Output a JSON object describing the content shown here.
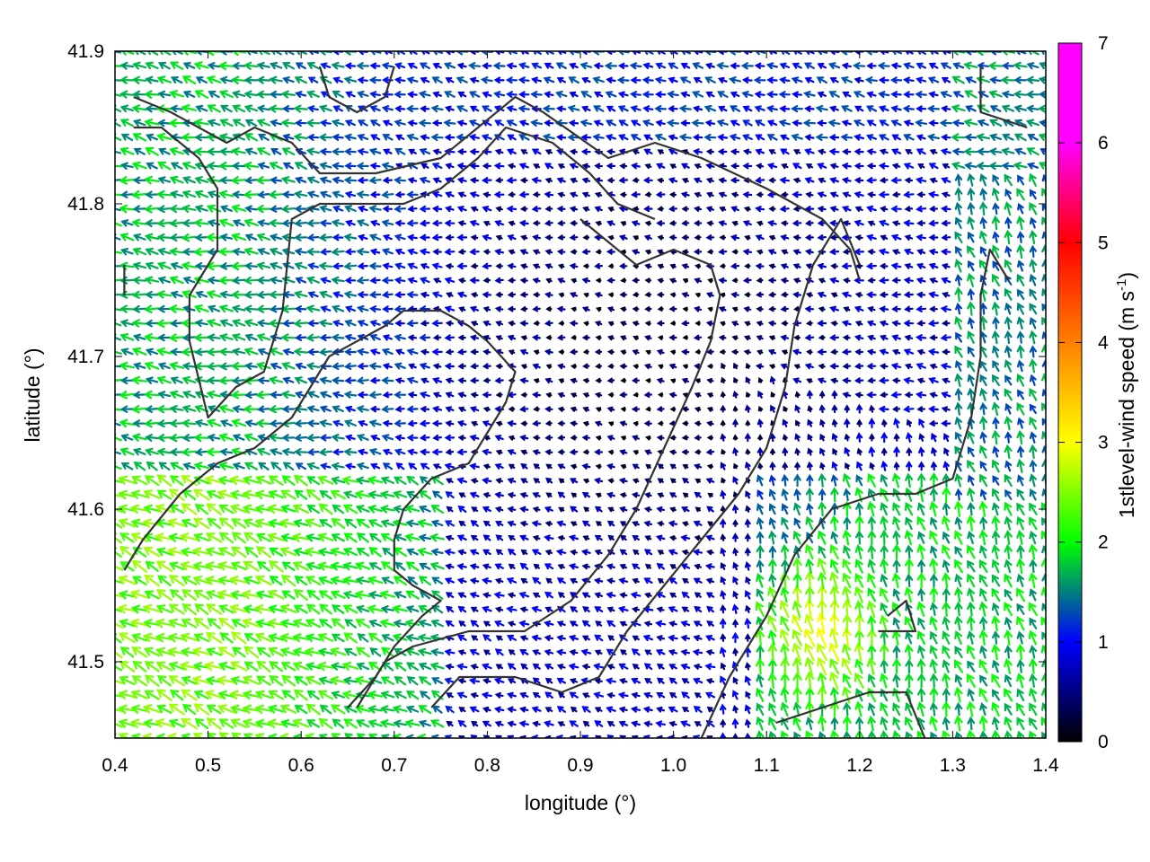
{
  "chart_data": {
    "type": "vector-field",
    "xlabel": "longitude (°)",
    "ylabel": "latitude (°)",
    "xlim": [
      0.4,
      1.4
    ],
    "ylim": [
      41.45,
      41.9
    ],
    "xticks": [
      "0.4",
      "0.5",
      "0.6",
      "0.7",
      "0.8",
      "0.9",
      "1.0",
      "1.1",
      "1.2",
      "1.3",
      "1.4"
    ],
    "yticks": [
      "41.5",
      "41.6",
      "41.7",
      "41.8",
      "41.9"
    ],
    "colorbar": {
      "label_pre": "1stlevel-wind speed (m s",
      "label_exp": "-1",
      "label_post": ")",
      "range": [
        0,
        7
      ],
      "ticks": [
        "0",
        "1",
        "2",
        "3",
        "4",
        "5",
        "6",
        "7"
      ],
      "colors": [
        "#000000",
        "#0000ff",
        "#00ff00",
        "#ffff00",
        "#ff8000",
        "#ff0000",
        "#ff00ff"
      ]
    },
    "grid": {
      "lon_step": 0.01333,
      "lat_step": 0.00937,
      "lon_start": 0.4,
      "lat_start": 41.45
    },
    "contour_lines": [
      [
        [
          0.42,
          41.87
        ],
        [
          0.46,
          41.86
        ],
        [
          0.52,
          41.84
        ],
        [
          0.55,
          41.85
        ],
        [
          0.59,
          41.84
        ],
        [
          0.62,
          41.82
        ],
        [
          0.68,
          41.82
        ],
        [
          0.75,
          41.83
        ],
        [
          0.79,
          41.85
        ],
        [
          0.83,
          41.87
        ],
        [
          0.86,
          41.86
        ],
        [
          0.93,
          41.83
        ],
        [
          0.98,
          41.84
        ],
        [
          1.03,
          41.83
        ],
        [
          1.1,
          41.81
        ],
        [
          1.16,
          41.79
        ],
        [
          1.19,
          41.77
        ],
        [
          1.2,
          41.75
        ]
      ],
      [
        [
          0.42,
          41.85
        ],
        [
          0.45,
          41.85
        ],
        [
          0.49,
          41.83
        ],
        [
          0.51,
          41.81
        ],
        [
          0.51,
          41.77
        ],
        [
          0.48,
          41.74
        ],
        [
          0.48,
          41.71
        ],
        [
          0.5,
          41.66
        ],
        [
          0.53,
          41.68
        ],
        [
          0.56,
          41.69
        ],
        [
          0.58,
          41.73
        ],
        [
          0.59,
          41.79
        ],
        [
          0.62,
          41.8
        ],
        [
          0.66,
          41.8
        ],
        [
          0.71,
          41.8
        ],
        [
          0.75,
          41.81
        ],
        [
          0.79,
          41.83
        ],
        [
          0.82,
          41.85
        ],
        [
          0.87,
          41.84
        ],
        [
          0.91,
          41.82
        ],
        [
          0.94,
          41.8
        ],
        [
          0.98,
          41.79
        ]
      ],
      [
        [
          0.41,
          41.56
        ],
        [
          0.43,
          41.58
        ],
        [
          0.47,
          41.61
        ],
        [
          0.51,
          41.63
        ],
        [
          0.55,
          41.64
        ],
        [
          0.59,
          41.66
        ],
        [
          0.61,
          41.68
        ],
        [
          0.63,
          41.7
        ],
        [
          0.66,
          41.71
        ],
        [
          0.69,
          41.72
        ],
        [
          0.71,
          41.73
        ],
        [
          0.75,
          41.73
        ],
        [
          0.78,
          41.72
        ],
        [
          0.8,
          41.71
        ],
        [
          0.83,
          41.69
        ],
        [
          0.82,
          41.67
        ],
        [
          0.8,
          41.65
        ],
        [
          0.78,
          41.63
        ],
        [
          0.74,
          41.62
        ],
        [
          0.71,
          41.6
        ],
        [
          0.7,
          41.58
        ],
        [
          0.7,
          41.56
        ],
        [
          0.72,
          41.55
        ],
        [
          0.75,
          41.54
        ],
        [
          0.73,
          41.53
        ],
        [
          0.7,
          41.51
        ],
        [
          0.68,
          41.49
        ],
        [
          0.65,
          41.47
        ]
      ],
      [
        [
          0.66,
          41.47
        ],
        [
          0.69,
          41.5
        ],
        [
          0.72,
          41.51
        ],
        [
          0.78,
          41.52
        ],
        [
          0.84,
          41.52
        ],
        [
          0.89,
          41.54
        ],
        [
          0.93,
          41.57
        ],
        [
          0.96,
          41.6
        ],
        [
          0.99,
          41.64
        ],
        [
          1.02,
          41.68
        ],
        [
          1.04,
          41.71
        ],
        [
          1.05,
          41.74
        ],
        [
          1.04,
          41.76
        ],
        [
          1.0,
          41.77
        ],
        [
          0.96,
          41.76
        ],
        [
          0.92,
          41.78
        ],
        [
          0.9,
          41.79
        ]
      ],
      [
        [
          0.74,
          41.47
        ],
        [
          0.77,
          41.49
        ],
        [
          0.83,
          41.49
        ],
        [
          0.88,
          41.48
        ],
        [
          0.92,
          41.49
        ],
        [
          0.95,
          41.52
        ],
        [
          0.99,
          41.55
        ],
        [
          1.03,
          41.58
        ],
        [
          1.07,
          41.61
        ],
        [
          1.1,
          41.64
        ],
        [
          1.12,
          41.68
        ],
        [
          1.13,
          41.72
        ],
        [
          1.15,
          41.76
        ],
        [
          1.18,
          41.79
        ],
        [
          1.2,
          41.76
        ]
      ],
      [
        [
          1.03,
          41.45
        ],
        [
          1.06,
          41.49
        ],
        [
          1.1,
          41.53
        ],
        [
          1.13,
          41.57
        ],
        [
          1.17,
          41.6
        ],
        [
          1.22,
          41.61
        ],
        [
          1.26,
          41.61
        ],
        [
          1.3,
          41.62
        ],
        [
          1.32,
          41.66
        ],
        [
          1.33,
          41.7
        ],
        [
          1.33,
          41.74
        ],
        [
          1.34,
          41.77
        ],
        [
          1.36,
          41.75
        ]
      ],
      [
        [
          1.11,
          41.46
        ],
        [
          1.16,
          41.47
        ],
        [
          1.21,
          41.48
        ],
        [
          1.25,
          41.48
        ],
        [
          1.27,
          41.45
        ]
      ],
      [
        [
          1.23,
          41.53
        ],
        [
          1.25,
          41.54
        ],
        [
          1.26,
          41.52
        ],
        [
          1.22,
          41.52
        ]
      ],
      [
        [
          0.62,
          41.89
        ],
        [
          0.63,
          41.87
        ],
        [
          0.66,
          41.86
        ],
        [
          0.69,
          41.87
        ],
        [
          0.7,
          41.89
        ]
      ],
      [
        [
          1.33,
          41.89
        ],
        [
          1.33,
          41.86
        ],
        [
          1.38,
          41.85
        ]
      ],
      [
        [
          0.41,
          41.76
        ],
        [
          0.41,
          41.74
        ]
      ]
    ]
  }
}
